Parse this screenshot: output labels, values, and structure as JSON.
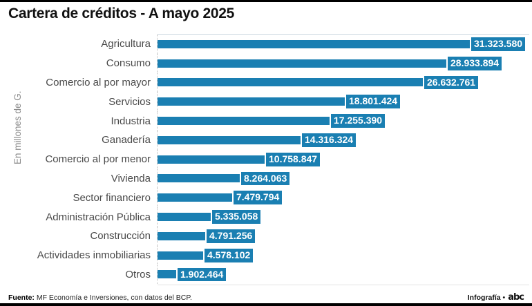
{
  "title": "Cartera de créditos - A mayo 2025",
  "ylabel": "En millones de G.",
  "footer": {
    "source_prefix": "Fuente:",
    "source_text": " MF Economía e Inversiones, con datos del BCP.",
    "credit_text": "Infografía •",
    "brand": "abc"
  },
  "colors": {
    "bar": "#1a7fb2",
    "badge_text": "#ffffff",
    "rule": "#000000"
  },
  "chart_data": {
    "type": "bar",
    "orientation": "horizontal",
    "title": "Cartera de créditos - A mayo 2025",
    "xlabel": "",
    "ylabel": "En millones de G.",
    "grid": false,
    "legend": false,
    "xlim": [
      0,
      33000000
    ],
    "categories": [
      "Agricultura",
      "Consumo",
      "Comercio al por mayor",
      "Servicios",
      "Industria",
      "Ganadería",
      "Comercio al por menor",
      "Vivienda",
      "Sector financiero",
      "Administración Pública",
      "Construcción",
      "Actividades inmobiliarias",
      "Otros"
    ],
    "values": [
      31323580,
      28933894,
      26632761,
      18801424,
      17255390,
      14316324,
      10758847,
      8264063,
      7479794,
      5335058,
      4791256,
      4578102,
      1902464
    ],
    "value_labels": [
      "31.323.580",
      "28.933.894",
      "26.632.761",
      "18.801.424",
      "17.255.390",
      "14.316.324",
      "10.758.847",
      "8.264.063",
      "7.479.794",
      "5.335.058",
      "4.791.256",
      "4.578.102",
      "1.902.464"
    ]
  }
}
